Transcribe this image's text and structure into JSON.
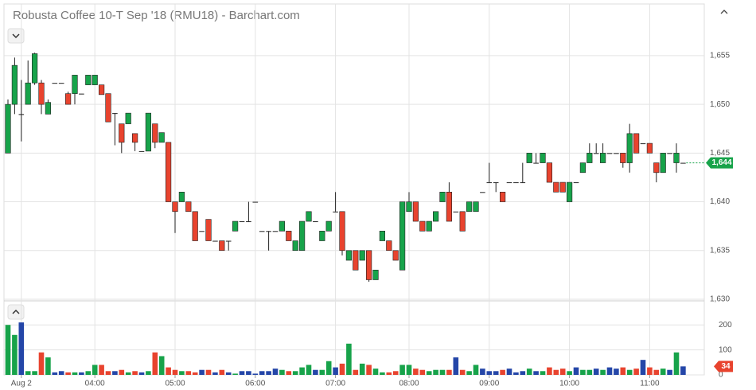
{
  "chart_data": {
    "type": "candlestick",
    "title": "Robusta Coffee 10-T Sep '18 (RMU18) - Barchart.com",
    "colors": {
      "up": "#17a34a",
      "down": "#e8432e",
      "flat": "#2446a8"
    },
    "ylim": [
      1630,
      1660.3
    ],
    "yticks": [
      {
        "value": 1630,
        "label": "1,630"
      },
      {
        "value": 1635,
        "label": "1,635"
      },
      {
        "value": 1640,
        "label": "1,640"
      },
      {
        "value": 1645,
        "label": "1,645"
      },
      {
        "value": 1650,
        "label": "1,650"
      },
      {
        "value": 1655,
        "label": "1,655"
      }
    ],
    "volume_ylim": [
      0,
      290
    ],
    "volume_yticks": [
      0,
      100,
      200
    ],
    "xticks": [
      {
        "value": 2,
        "label": "Aug 2"
      },
      {
        "value": 13,
        "label": "04:00"
      },
      {
        "value": 25,
        "label": "05:00"
      },
      {
        "value": 37,
        "label": "06:00"
      },
      {
        "value": 49,
        "label": "07:00"
      },
      {
        "value": 60,
        "label": "08:00"
      },
      {
        "value": 72,
        "label": "09:00"
      },
      {
        "value": 84,
        "label": "10:00"
      },
      {
        "value": 96,
        "label": "11:00"
      }
    ],
    "last_price": {
      "value": 1644,
      "label": "1,644"
    },
    "last_volume": 34,
    "candles": [
      [
        1645,
        1650.5,
        1645,
        1650
      ],
      [
        1650,
        1654.8,
        1649,
        1654
      ],
      [
        1649,
        1652.5,
        1646.2,
        1649
      ],
      [
        1650,
        1654.5,
        1650,
        1652.2
      ],
      [
        1652.2,
        1655.3,
        1652,
        1655.2
      ],
      [
        1652.2,
        1652.5,
        1649,
        1650
      ],
      [
        1649,
        1650.5,
        1649,
        1650.2
      ],
      [
        1652.2,
        1652.2,
        1652.2,
        1652.2
      ],
      [
        1652.2,
        1652.2,
        1652.2,
        1652.2
      ],
      [
        1651.1,
        1651.3,
        1650,
        1650
      ],
      [
        1651.1,
        1653,
        1650,
        1653
      ],
      [
        1651.1,
        1651.1,
        1651.1,
        1651.1
      ],
      [
        1652,
        1653,
        1652,
        1653
      ],
      [
        1652,
        1653,
        1652,
        1653
      ],
      [
        1652,
        1652,
        1651,
        1651
      ],
      [
        1651.1,
        1651.1,
        1648.2,
        1648.2
      ],
      [
        1649.1,
        1649.1,
        1645.8,
        1649.1
      ],
      [
        1648,
        1648,
        1645,
        1646.1
      ],
      [
        1648,
        1649.1,
        1648,
        1649.1
      ],
      [
        1647,
        1647,
        1645.2,
        1646.1
      ],
      [
        1645.2,
        1645.2,
        1645.2,
        1645.2
      ],
      [
        1645.2,
        1649.1,
        1645.2,
        1649.1
      ],
      [
        1648,
        1648,
        1645.5,
        1646.1
      ],
      [
        1646.1,
        1647.1,
        1646.1,
        1647.1
      ],
      [
        1646.1,
        1646.1,
        1640,
        1640
      ],
      [
        1640,
        1640,
        1636.8,
        1639
      ],
      [
        1640,
        1641,
        1640,
        1641
      ],
      [
        1640,
        1640,
        1639,
        1639
      ],
      [
        1639,
        1639,
        1636,
        1636
      ],
      [
        1637,
        1637,
        1637,
        1637
      ],
      [
        1638.2,
        1638.2,
        1636,
        1636
      ],
      [
        1636,
        1636,
        1636,
        1636
      ],
      [
        1636,
        1636,
        1635,
        1635
      ],
      [
        1636,
        1636,
        1635,
        1636
      ],
      [
        1637,
        1638,
        1637,
        1638
      ],
      [
        1638,
        1638,
        1638,
        1638
      ],
      [
        1638,
        1640,
        1638,
        1638
      ],
      [
        1640,
        1640,
        1640,
        1640
      ],
      [
        1637,
        1637,
        1637,
        1637
      ],
      [
        1637,
        1637,
        1635,
        1637
      ],
      [
        1637,
        1637,
        1637,
        1637
      ],
      [
        1637,
        1638,
        1637,
        1638
      ],
      [
        1637,
        1637,
        1636,
        1636
      ],
      [
        1635,
        1636,
        1635,
        1636
      ],
      [
        1635,
        1638,
        1635,
        1638
      ],
      [
        1638,
        1639,
        1638,
        1639
      ],
      [
        1638,
        1638,
        1638,
        1638
      ],
      [
        1636,
        1637,
        1636,
        1637
      ],
      [
        1637,
        1638,
        1637,
        1638
      ],
      [
        1639,
        1641,
        1639,
        1639
      ],
      [
        1639,
        1639,
        1634.5,
        1635
      ],
      [
        1634,
        1635,
        1634,
        1635
      ],
      [
        1635,
        1635,
        1633,
        1633
      ],
      [
        1634,
        1635,
        1634,
        1635
      ],
      [
        1635,
        1635,
        1631.8,
        1632
      ],
      [
        1632,
        1633,
        1632,
        1633
      ],
      [
        1636,
        1637,
        1636,
        1637
      ],
      [
        1636,
        1636,
        1635,
        1635
      ],
      [
        1635,
        1635,
        1634,
        1634
      ],
      [
        1633,
        1640,
        1633,
        1640
      ],
      [
        1639,
        1641,
        1639,
        1640
      ],
      [
        1640,
        1640,
        1638,
        1638
      ],
      [
        1638,
        1638,
        1637,
        1637
      ],
      [
        1637,
        1638,
        1637,
        1638
      ],
      [
        1638,
        1639,
        1638,
        1639
      ],
      [
        1640,
        1641,
        1640,
        1641
      ],
      [
        1641,
        1642,
        1638,
        1638
      ],
      [
        1639,
        1639,
        1639,
        1639
      ],
      [
        1639,
        1639,
        1637,
        1637
      ],
      [
        1639,
        1640,
        1639,
        1640
      ],
      [
        1639,
        1640,
        1639,
        1640
      ],
      [
        1641,
        1641,
        1641,
        1641
      ],
      [
        1642,
        1644,
        1642,
        1642
      ],
      [
        1642,
        1642,
        1641,
        1642
      ],
      [
        1641,
        1641,
        1640,
        1640
      ],
      [
        1642,
        1642,
        1642,
        1642
      ],
      [
        1642,
        1642,
        1642,
        1642
      ],
      [
        1642,
        1644,
        1642,
        1642
      ],
      [
        1644,
        1645,
        1644,
        1645
      ],
      [
        1644,
        1645,
        1644,
        1644
      ],
      [
        1644,
        1645,
        1644,
        1645
      ],
      [
        1644,
        1644,
        1642,
        1642
      ],
      [
        1642,
        1642,
        1641,
        1641
      ],
      [
        1642,
        1642,
        1641,
        1641
      ],
      [
        1640,
        1642,
        1640,
        1642
      ],
      [
        1642,
        1642,
        1642,
        1642
      ],
      [
        1643,
        1644,
        1643,
        1644
      ],
      [
        1644,
        1646,
        1644,
        1645
      ],
      [
        1645,
        1646,
        1645,
        1645
      ],
      [
        1644,
        1646,
        1644,
        1645
      ],
      [
        1645,
        1645,
        1645,
        1645
      ],
      [
        1645,
        1645,
        1645,
        1645
      ],
      [
        1645,
        1645,
        1643.5,
        1644
      ],
      [
        1644,
        1648,
        1643,
        1647
      ],
      [
        1647,
        1647,
        1645,
        1645
      ],
      [
        1646,
        1646,
        1646,
        1646
      ],
      [
        1646,
        1646,
        1645,
        1645
      ],
      [
        1644,
        1644,
        1642,
        1643
      ],
      [
        1643,
        1645,
        1643,
        1645
      ],
      [
        1645,
        1645,
        1645,
        1645
      ],
      [
        1644,
        1646,
        1643,
        1645
      ],
      [
        1644,
        1644,
        1644,
        1644
      ]
    ],
    "volumes": [
      200,
      160,
      210,
      15,
      15,
      90,
      70,
      10,
      15,
      10,
      10,
      10,
      15,
      40,
      40,
      15,
      15,
      20,
      10,
      15,
      10,
      15,
      90,
      75,
      30,
      20,
      15,
      15,
      10,
      20,
      20,
      10,
      20,
      10,
      5,
      15,
      15,
      5,
      15,
      15,
      25,
      20,
      15,
      15,
      30,
      40,
      20,
      20,
      55,
      30,
      45,
      125,
      20,
      45,
      40,
      25,
      10,
      10,
      15,
      40,
      40,
      25,
      20,
      15,
      20,
      20,
      20,
      70,
      20,
      15,
      40,
      25,
      15,
      15,
      20,
      25,
      10,
      15,
      25,
      15,
      15,
      30,
      20,
      25,
      15,
      30,
      20,
      20,
      25,
      20,
      30,
      25,
      30,
      20,
      25,
      60,
      30,
      20,
      25,
      20,
      90,
      34
    ]
  }
}
